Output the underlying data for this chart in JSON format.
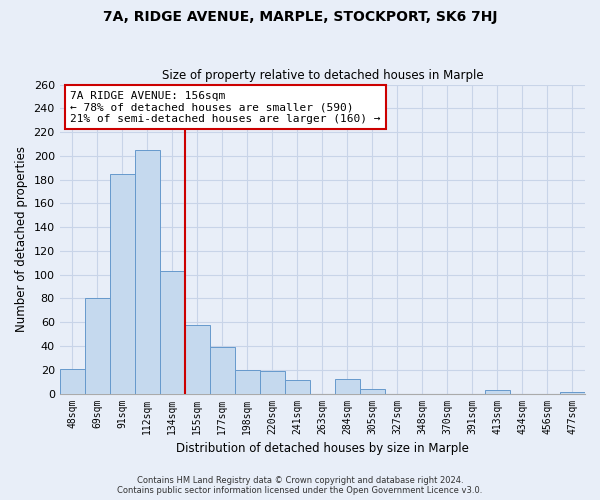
{
  "title": "7A, RIDGE AVENUE, MARPLE, STOCKPORT, SK6 7HJ",
  "subtitle": "Size of property relative to detached houses in Marple",
  "xlabel": "Distribution of detached houses by size in Marple",
  "ylabel": "Number of detached properties",
  "bar_labels": [
    "48sqm",
    "69sqm",
    "91sqm",
    "112sqm",
    "134sqm",
    "155sqm",
    "177sqm",
    "198sqm",
    "220sqm",
    "241sqm",
    "263sqm",
    "284sqm",
    "305sqm",
    "327sqm",
    "348sqm",
    "370sqm",
    "391sqm",
    "413sqm",
    "434sqm",
    "456sqm",
    "477sqm"
  ],
  "bar_values": [
    21,
    80,
    185,
    205,
    103,
    58,
    39,
    20,
    19,
    11,
    0,
    12,
    4,
    0,
    0,
    0,
    0,
    3,
    0,
    0,
    1
  ],
  "bar_color": "#c5d9ee",
  "bar_edge_color": "#6699cc",
  "vline_color": "#cc0000",
  "annotation_title": "7A RIDGE AVENUE: 156sqm",
  "annotation_line1": "← 78% of detached houses are smaller (590)",
  "annotation_line2": "21% of semi-detached houses are larger (160) →",
  "annotation_box_color": "#ffffff",
  "annotation_box_edge": "#cc0000",
  "ylim": [
    0,
    260
  ],
  "yticks": [
    0,
    20,
    40,
    60,
    80,
    100,
    120,
    140,
    160,
    180,
    200,
    220,
    240,
    260
  ],
  "grid_color": "#c8d4e8",
  "footer_line1": "Contains HM Land Registry data © Crown copyright and database right 2024.",
  "footer_line2": "Contains public sector information licensed under the Open Government Licence v3.0.",
  "bg_color": "#e8eef8"
}
